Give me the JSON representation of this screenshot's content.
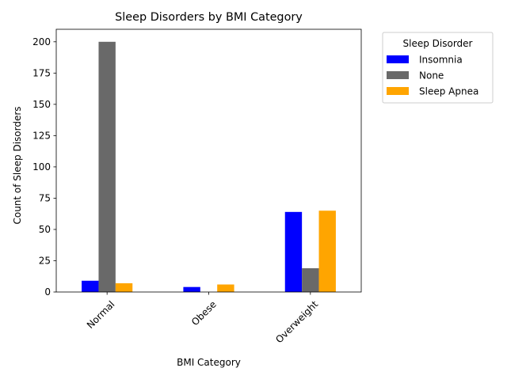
{
  "chart_data": {
    "type": "bar",
    "title": "Sleep Disorders by BMI Category",
    "xlabel": "BMI Category",
    "ylabel": "Count of Sleep Disorders",
    "categories": [
      "Normal",
      "Obese",
      "Overweight"
    ],
    "series": [
      {
        "name": "Insomnia",
        "values": [
          9,
          4,
          64
        ],
        "color": "#0000ff"
      },
      {
        "name": "None",
        "values": [
          200,
          0,
          19
        ],
        "color": "#696969"
      },
      {
        "name": "Sleep Apnea",
        "values": [
          7,
          6,
          65
        ],
        "color": "#ffa500"
      }
    ],
    "ylim": [
      0,
      210
    ],
    "yticks": [
      0,
      25,
      50,
      75,
      100,
      125,
      150,
      175,
      200
    ],
    "grid": false,
    "legend": {
      "title": "Sleep Disorder",
      "placement": "outside-top-right"
    }
  }
}
